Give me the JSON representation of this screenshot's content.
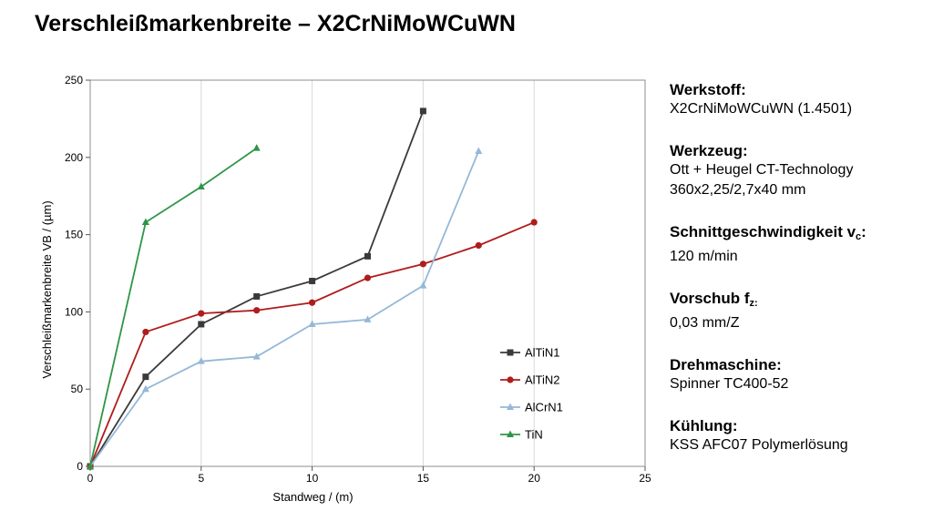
{
  "title": "Verschleißmarkenbreite – X2CrNiMoWCuWN",
  "info": [
    {
      "label": "Werkstoff:",
      "sub": "",
      "suffix": "",
      "lines": [
        "X2CrNiMoWCuWN (1.4501)"
      ]
    },
    {
      "label": "Werkzeug:",
      "sub": "",
      "suffix": "",
      "lines": [
        "Ott + Heugel CT-Technology",
        "360x2,25/2,7x40 mm"
      ]
    },
    {
      "label": "Schnittgeschwindigkeit v",
      "sub": "c",
      "suffix": ":",
      "lines": [
        "120 m/min"
      ]
    },
    {
      "label": "Vorschub f",
      "sub": "z:",
      "suffix": "",
      "lines": [
        "0,03 mm/Z"
      ]
    },
    {
      "label": "Drehmaschine:",
      "sub": "",
      "suffix": "",
      "lines": [
        "Spinner TC400-52"
      ]
    },
    {
      "label": "Kühlung:",
      "sub": "",
      "suffix": "",
      "lines": [
        "KSS AFC07 Polymerlösung"
      ]
    }
  ],
  "chart_data": {
    "type": "line",
    "xlabel": "Standweg / (m)",
    "ylabel": "Verschleißmarkenbreite VB / (µm)",
    "xlim": [
      0,
      25
    ],
    "ylim": [
      0,
      250
    ],
    "xticks": [
      0,
      5,
      10,
      15,
      20,
      25
    ],
    "yticks": [
      0,
      50,
      100,
      150,
      200,
      250
    ],
    "grid": "vertical",
    "legend": "lower-right",
    "series": [
      {
        "name": "AlTiN1",
        "color": "#3a3a3a",
        "marker": "square",
        "x": [
          0,
          2.5,
          5,
          7.5,
          10,
          12.5,
          15
        ],
        "y": [
          0,
          58,
          92,
          110,
          120,
          136,
          230
        ]
      },
      {
        "name": "AlTiN2",
        "color": "#b01c1c",
        "marker": "circle",
        "x": [
          0,
          2.5,
          5,
          7.5,
          10,
          12.5,
          15,
          17.5,
          20
        ],
        "y": [
          0,
          87,
          99,
          101,
          106,
          122,
          131,
          143,
          158
        ]
      },
      {
        "name": "AlCrN1",
        "color": "#95b8d8",
        "marker": "triangle",
        "x": [
          0,
          2.5,
          5,
          7.5,
          10,
          12.5,
          15,
          17.5
        ],
        "y": [
          0,
          50,
          68,
          71,
          92,
          95,
          117,
          204
        ]
      },
      {
        "name": "TiN",
        "color": "#2e9548",
        "marker": "triangle",
        "x": [
          0,
          2.5,
          5,
          7.5
        ],
        "y": [
          0,
          158,
          181,
          206
        ]
      }
    ]
  }
}
